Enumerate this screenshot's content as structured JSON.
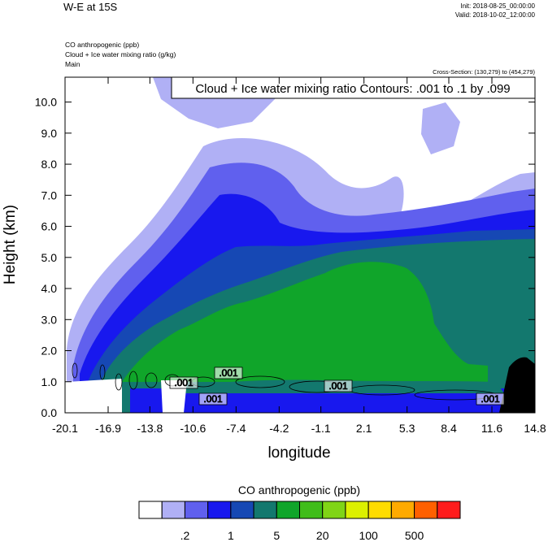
{
  "header": {
    "title": "W-E at 15S",
    "init": "Init: 2018-08-25_00:00:00",
    "valid": "Valid: 2018-10-02_12:00:00",
    "fields": [
      "CO anthropogenic   (ppb)",
      "Cloud + Ice water mixing ratio   (g/kg)",
      "Main"
    ],
    "cross_section": "Cross-Section: (130,279) to (454,279)"
  },
  "chart_data": {
    "type": "heatmap",
    "title": "W-E at 15S",
    "xlabel": "longitude",
    "ylabel": "Height (km)",
    "xlim": [
      -20.1,
      14.8
    ],
    "ylim": [
      0,
      10.8
    ],
    "x_ticks": [
      "-20.1",
      "-16.9",
      "-13.8",
      "-10.6",
      "-7.4",
      "-4.2",
      "-1.1",
      "2.1",
      "5.3",
      "8.4",
      "11.6",
      "14.8"
    ],
    "y_ticks": [
      "0.0",
      "1.0",
      "2.0",
      "3.0",
      "4.0",
      "5.0",
      "6.0",
      "7.0",
      "8.0",
      "9.0",
      "10.0"
    ],
    "contour_label": "Cloud + Ice water mixing ratio Contours: .001 to .1 by .099",
    "contour_values": [
      ".001",
      ".001",
      ".001",
      ".001",
      ".001"
    ],
    "colorbar": {
      "title": "CO anthropogenic  (ppb)",
      "colors": [
        "#ffffff",
        "#b0b0f5",
        "#6060ee",
        "#1818ee",
        "#1648b4",
        "#13786e",
        "#10a52a",
        "#40bd1a",
        "#80d416",
        "#dcf000",
        "#ffdc00",
        "#ffaa00",
        "#ff6000",
        "#ff1c1c"
      ],
      "tick_labels": [
        ".2",
        "1",
        "5",
        "20",
        "100",
        "500"
      ]
    },
    "grid": false
  }
}
